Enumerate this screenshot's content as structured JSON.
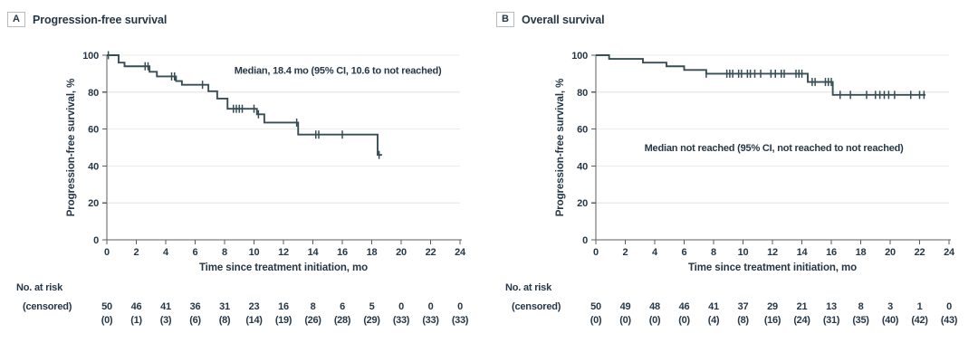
{
  "colors": {
    "curve": "#374E55",
    "ink": "#263746",
    "grid": "#EBEBE9",
    "axis": "#5B5E60",
    "background": "#FFFFFF"
  },
  "chart_data": [
    {
      "type": "line",
      "subtype": "kaplan-meier-step",
      "panel_label": "A",
      "title": "Progression-free survival",
      "ylabel": "Progression-free survival, %",
      "xlabel": "Time since treatment initiation, mo",
      "annotation": {
        "text": "Median, 18.4 mo (95% CI, 10.6 to not reached)",
        "x_mo": 15.7,
        "y_pct": 92
      },
      "xlim": [
        0,
        24
      ],
      "ylim": [
        0,
        100
      ],
      "x_ticks": [
        0,
        2,
        4,
        6,
        8,
        10,
        12,
        14,
        16,
        18,
        20,
        22,
        24
      ],
      "y_ticks": [
        0,
        20,
        40,
        60,
        80,
        100
      ],
      "grid": true,
      "km_steps": [
        [
          0,
          100
        ],
        [
          0.8,
          96
        ],
        [
          1.2,
          94
        ],
        [
          2.9,
          91
        ],
        [
          3.4,
          88.5
        ],
        [
          4.7,
          86
        ],
        [
          5.1,
          84
        ],
        [
          6.9,
          80.5
        ],
        [
          7.5,
          76.5
        ],
        [
          8.2,
          71
        ],
        [
          10.2,
          68
        ],
        [
          10.7,
          63.5
        ],
        [
          13.0,
          57
        ],
        [
          18.4,
          46
        ]
      ],
      "end_x": 18.7,
      "censor_marks": [
        [
          0.1,
          100
        ],
        [
          2.6,
          94
        ],
        [
          2.8,
          94
        ],
        [
          4.4,
          88.5
        ],
        [
          4.6,
          88.5
        ],
        [
          6.5,
          84
        ],
        [
          8.6,
          71
        ],
        [
          8.8,
          71
        ],
        [
          9.0,
          71
        ],
        [
          9.2,
          71
        ],
        [
          10.0,
          71
        ],
        [
          10.3,
          68
        ],
        [
          12.9,
          63.5
        ],
        [
          14.2,
          57
        ],
        [
          14.4,
          57
        ],
        [
          16.0,
          57
        ],
        [
          18.5,
          46
        ]
      ],
      "risk_table": {
        "label_line1": "No. at risk",
        "label_line2": "(censored)",
        "times": [
          0,
          2,
          4,
          6,
          8,
          10,
          12,
          14,
          16,
          18,
          20,
          22,
          24
        ],
        "at_risk": [
          50,
          46,
          41,
          36,
          31,
          23,
          16,
          8,
          6,
          5,
          0,
          0,
          0
        ],
        "censored": [
          "(0)",
          "(1)",
          "(3)",
          "(6)",
          "(8)",
          "(14)",
          "(19)",
          "(26)",
          "(28)",
          "(29)",
          "(33)",
          "(33)",
          "(33)"
        ]
      }
    },
    {
      "type": "line",
      "subtype": "kaplan-meier-step",
      "panel_label": "B",
      "title": "Overall survival",
      "ylabel": "Progression-free survival, %",
      "xlabel": "Time since treatment initiation, mo",
      "annotation": {
        "text": "Median not reached (95% CI, not reached to not reached)",
        "x_mo": 12.1,
        "y_pct": 50
      },
      "xlim": [
        0,
        24
      ],
      "ylim": [
        0,
        100
      ],
      "x_ticks": [
        0,
        2,
        4,
        6,
        8,
        10,
        12,
        14,
        16,
        18,
        20,
        22,
        24
      ],
      "y_ticks": [
        0,
        20,
        40,
        60,
        80,
        100
      ],
      "grid": true,
      "km_steps": [
        [
          0,
          100
        ],
        [
          0.9,
          98
        ],
        [
          3.2,
          96
        ],
        [
          4.8,
          94
        ],
        [
          6.0,
          92
        ],
        [
          7.5,
          90
        ],
        [
          14.4,
          85.5
        ],
        [
          16.1,
          78.5
        ]
      ],
      "end_x": 22.4,
      "censor_marks": [
        [
          7.5,
          90
        ],
        [
          8.9,
          90
        ],
        [
          9.1,
          90
        ],
        [
          9.3,
          90
        ],
        [
          9.7,
          90
        ],
        [
          9.9,
          90
        ],
        [
          10.3,
          90
        ],
        [
          10.5,
          90
        ],
        [
          10.8,
          90
        ],
        [
          11.2,
          90
        ],
        [
          11.9,
          90
        ],
        [
          12.2,
          90
        ],
        [
          12.6,
          90
        ],
        [
          12.8,
          90
        ],
        [
          13.6,
          90
        ],
        [
          13.8,
          90
        ],
        [
          14.0,
          90
        ],
        [
          14.7,
          85.5
        ],
        [
          14.9,
          85.5
        ],
        [
          15.6,
          85.5
        ],
        [
          15.8,
          85.5
        ],
        [
          16.0,
          85.5
        ],
        [
          16.6,
          78.5
        ],
        [
          17.3,
          78.5
        ],
        [
          18.4,
          78.5
        ],
        [
          19.0,
          78.5
        ],
        [
          19.3,
          78.5
        ],
        [
          19.6,
          78.5
        ],
        [
          19.9,
          78.5
        ],
        [
          20.3,
          78.5
        ],
        [
          21.4,
          78.5
        ],
        [
          22.0,
          78.5
        ],
        [
          22.3,
          78.5
        ]
      ],
      "risk_table": {
        "label_line1": "No. at risk",
        "label_line2": "(censored)",
        "times": [
          0,
          2,
          4,
          6,
          8,
          10,
          12,
          14,
          16,
          18,
          20,
          22,
          24
        ],
        "at_risk": [
          50,
          49,
          48,
          46,
          41,
          37,
          29,
          21,
          13,
          8,
          3,
          1,
          0
        ],
        "censored": [
          "(0)",
          "(0)",
          "(0)",
          "(0)",
          "(4)",
          "(8)",
          "(16)",
          "(24)",
          "(31)",
          "(35)",
          "(40)",
          "(42)",
          "(43)"
        ]
      }
    }
  ]
}
